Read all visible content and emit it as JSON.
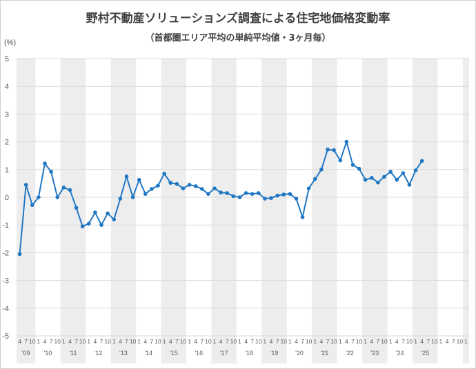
{
  "chart_data": {
    "type": "line",
    "title": "野村不動産ソリューションズ調査による住宅地価格変動率",
    "subtitle": "（首都圏エリア平均の単純平均値・3ヶ月毎）",
    "y_unit": "(%)",
    "ylim": [
      -5,
      5
    ],
    "y_ticks": [
      "5",
      "4",
      "3",
      "2",
      "1",
      "0",
      "-1",
      "-2",
      "-3",
      "-4",
      "-5"
    ],
    "grid": true,
    "legend": "none",
    "series_color": "#1f77c4",
    "band_color": "#ededed",
    "x_month_labels": [
      "4",
      "7",
      "10",
      "1",
      "4",
      "7",
      "10",
      "1",
      "4",
      "7",
      "10",
      "1",
      "4",
      "7",
      "10",
      "1",
      "4",
      "7",
      "10",
      "1",
      "4",
      "7",
      "10",
      "1",
      "4",
      "7",
      "10",
      "1",
      "4",
      "7",
      "10",
      "1",
      "4",
      "7",
      "10",
      "1",
      "4",
      "7",
      "10",
      "1",
      "4",
      "7",
      "10",
      "1",
      "4",
      "7",
      "10",
      "1",
      "4",
      "7",
      "10",
      "1",
      "4",
      "7",
      "10",
      "1",
      "4",
      "7",
      "10",
      "1",
      "4",
      "7",
      "10",
      "1",
      "4",
      "7",
      "10",
      "1",
      "4",
      "7",
      "10",
      "1"
    ],
    "x_year_labels": [
      "'09",
      "'10",
      "'11",
      "'12",
      "'13",
      "'14",
      "'15",
      "'16",
      "'17",
      "'18",
      "'19",
      "'20",
      "'21",
      "'22",
      "'23",
      "'24",
      "'25"
    ],
    "series": [
      {
        "values": [
          -2.05,
          0.45,
          -0.28,
          0.0,
          1.22,
          0.92,
          0.0,
          0.35,
          0.26,
          -0.38,
          -1.05,
          -0.95,
          -0.55,
          -1.0,
          -0.58,
          -0.8,
          -0.05,
          0.75,
          0.0,
          0.63,
          0.12,
          0.3,
          0.42,
          0.85,
          0.52,
          0.48,
          0.32,
          0.45,
          0.4,
          0.3,
          0.12,
          0.32,
          0.17,
          0.15,
          0.04,
          0.0,
          0.15,
          0.12,
          0.15,
          -0.05,
          -0.03,
          0.06,
          0.1,
          0.12,
          -0.05,
          -0.72,
          0.32,
          0.66,
          1.0,
          1.72,
          1.7,
          1.33,
          2.0,
          1.17,
          1.03,
          0.63,
          0.7,
          0.53,
          0.74,
          0.92,
          0.63,
          0.87,
          0.45,
          0.97,
          1.31
        ]
      }
    ]
  }
}
